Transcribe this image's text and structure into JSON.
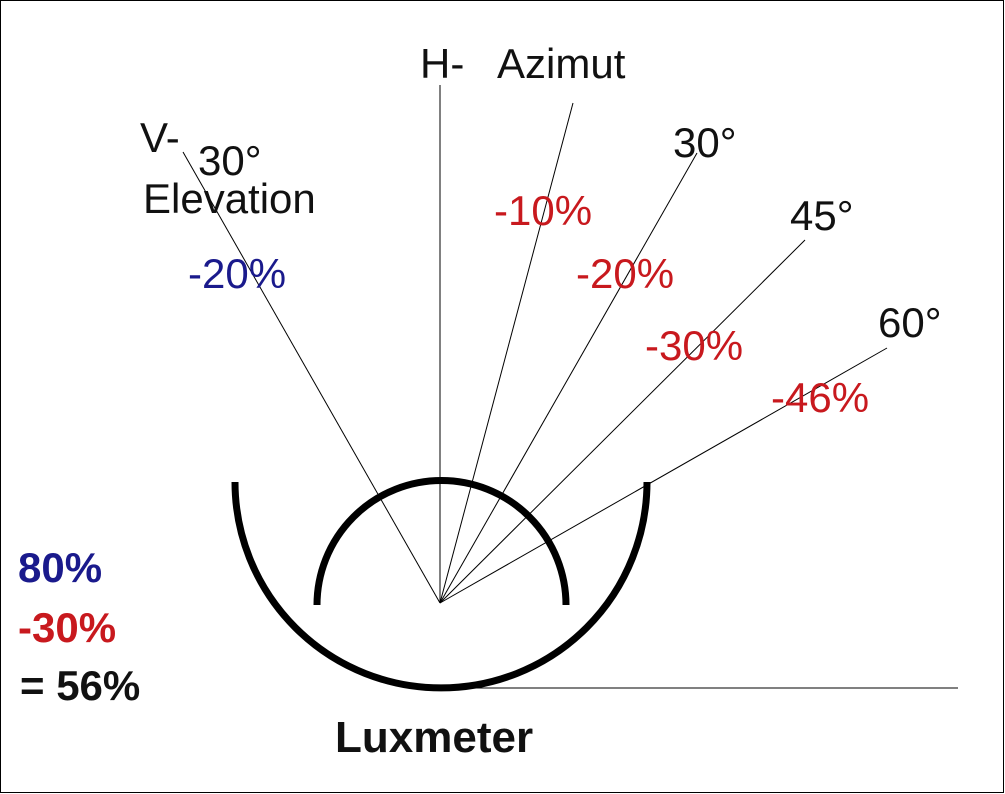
{
  "azimuth": {
    "prefix": "H-",
    "label": "Azimut"
  },
  "elevation": {
    "prefix": "V-",
    "angle": "30°",
    "label": "Elevation",
    "percent": "-20%"
  },
  "azimuth_rays": [
    {
      "percent": "-10%"
    },
    {
      "angle": "30°",
      "percent": "-20%"
    },
    {
      "angle": "45°",
      "percent": "-30%"
    },
    {
      "angle": "60°",
      "percent": "-46%"
    }
  ],
  "summary": {
    "elevation_factor": "80%",
    "azimuth_factor": "-30%",
    "result": "= 56%"
  },
  "title": "Luxmeter"
}
